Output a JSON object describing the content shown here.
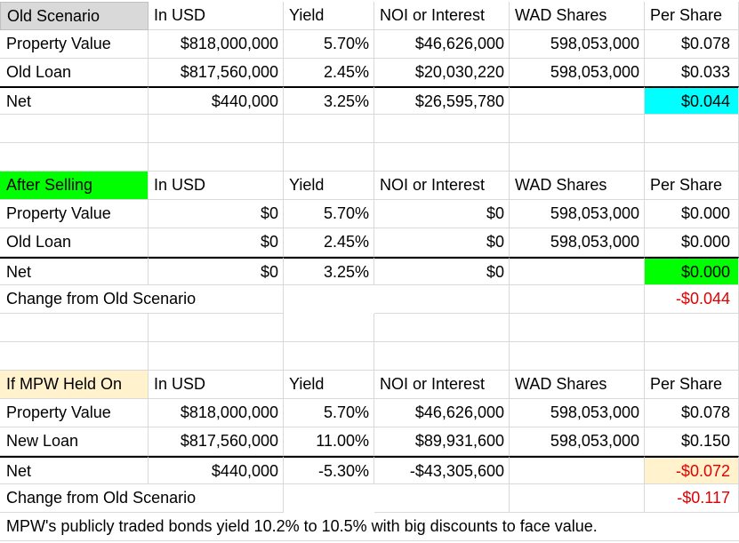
{
  "colors": {
    "old_scenario_label_bg": "#d9d9d9",
    "after_selling_label_bg": "#00ff00",
    "mpw_held_label_bg": "#fff2cc",
    "old_net_per_share_bg": "#00ffff",
    "after_net_per_share_bg": "#00ff00",
    "mpw_net_per_share_bg": "#fff2cc",
    "negative_text": "#e00000"
  },
  "old": {
    "header": [
      "Old Scenario",
      "In USD",
      "Yield",
      "NOI or Interest",
      "WAD Shares",
      "Per Share"
    ],
    "rows": [
      [
        "Property Value",
        "$818,000,000",
        "5.70%",
        "$46,626,000",
        "598,053,000",
        "$0.078"
      ],
      [
        "Old Loan",
        "$817,560,000",
        "2.45%",
        "$20,030,220",
        "598,053,000",
        "$0.033"
      ],
      [
        "Net",
        "$440,000",
        "3.25%",
        "$26,595,780",
        "",
        "$0.044"
      ]
    ]
  },
  "after": {
    "header": [
      "After Selling",
      "In USD",
      "Yield",
      "NOI or Interest",
      "WAD Shares",
      "Per Share"
    ],
    "rows": [
      [
        "Property Value",
        "$0",
        "5.70%",
        "$0",
        "598,053,000",
        "$0.000"
      ],
      [
        "Old Loan",
        "$0",
        "2.45%",
        "$0",
        "598,053,000",
        "$0.000"
      ],
      [
        "Net",
        "$0",
        "3.25%",
        "$0",
        "",
        "$0.000"
      ]
    ],
    "change_label": "Change from Old Scenario",
    "change_value": "-$0.044"
  },
  "mpw": {
    "header": [
      "If MPW Held On",
      "In USD",
      "Yield",
      "NOI or Interest",
      "WAD Shares",
      "Per Share"
    ],
    "rows": [
      [
        "Property Value",
        "$818,000,000",
        "5.70%",
        "$46,626,000",
        "598,053,000",
        "$0.078"
      ],
      [
        "New Loan",
        "$817,560,000",
        "11.00%",
        "$89,931,600",
        "598,053,000",
        "$0.150"
      ],
      [
        "Net",
        "$440,000",
        "-5.30%",
        "-$43,305,600",
        "",
        "-$0.072"
      ]
    ],
    "change_label": "Change from Old Scenario",
    "change_value": "-$0.117"
  },
  "note": "MPW's publicly traded bonds yield 10.2% to 10.5% with big discounts to face value."
}
